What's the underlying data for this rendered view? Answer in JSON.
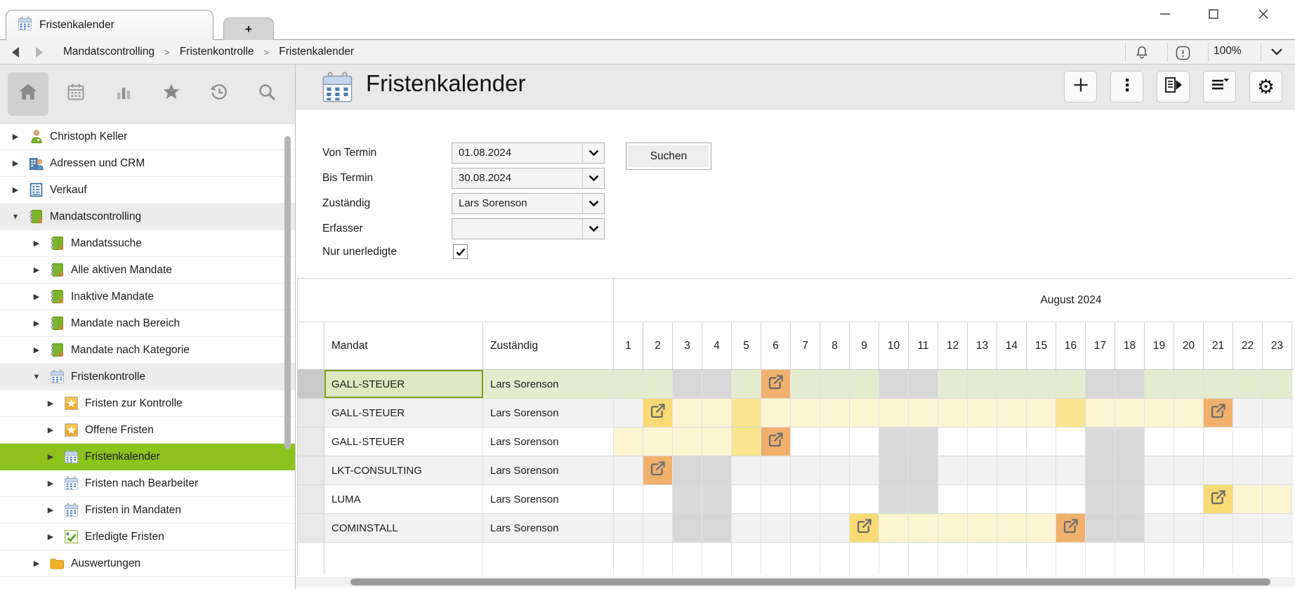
{
  "tab_bar": {
    "active_tab": {
      "label": "Fristenkalender"
    },
    "new_tab_label": "+"
  },
  "breadcrumb": {
    "items": [
      "Mandatscontrolling",
      "Fristenkontrolle",
      "Fristenkalender"
    ],
    "separator": ">",
    "zoom": "100%"
  },
  "sidebar": {
    "icon_strip": [
      {
        "name": "home",
        "selected": true
      },
      {
        "name": "calendar",
        "selected": false
      },
      {
        "name": "bar-chart",
        "selected": false
      },
      {
        "name": "star",
        "selected": false
      },
      {
        "name": "history",
        "selected": false
      },
      {
        "name": "search",
        "selected": false
      }
    ],
    "tree": [
      {
        "label": "Christoph Keller",
        "level": 0,
        "state": "collapsed",
        "icon": "person"
      },
      {
        "label": "Adressen und CRM",
        "level": 0,
        "state": "collapsed",
        "icon": "crm"
      },
      {
        "label": "Verkauf",
        "level": 0,
        "state": "collapsed",
        "icon": "sales"
      },
      {
        "label": "Mandatscontrolling",
        "level": 0,
        "state": "expanded",
        "icon": "mandate",
        "highlighted": true
      },
      {
        "label": "Mandatssuche",
        "level": 1,
        "state": "collapsed",
        "icon": "mandate"
      },
      {
        "label": "Alle aktiven Mandate",
        "level": 1,
        "state": "collapsed",
        "icon": "mandate"
      },
      {
        "label": "Inaktive Mandate",
        "level": 1,
        "state": "collapsed",
        "icon": "mandate"
      },
      {
        "label": "Mandate nach Bereich",
        "level": 1,
        "state": "collapsed",
        "icon": "mandate"
      },
      {
        "label": "Mandate nach Kategorie",
        "level": 1,
        "state": "collapsed",
        "icon": "mandate"
      },
      {
        "label": "Fristenkontrolle",
        "level": 1,
        "state": "expanded",
        "icon": "calendar",
        "highlighted": true
      },
      {
        "label": "Fristen zur Kontrolle",
        "level": 2,
        "state": "collapsed",
        "icon": "star-badge"
      },
      {
        "label": "Offene Fristen",
        "level": 2,
        "state": "collapsed",
        "icon": "star-badge"
      },
      {
        "label": "Fristenkalender",
        "level": 2,
        "state": "collapsed",
        "icon": "calendar",
        "selected": true
      },
      {
        "label": "Fristen nach Bearbeiter",
        "level": 2,
        "state": "collapsed",
        "icon": "calendar"
      },
      {
        "label": "Fristen in Mandaten",
        "level": 2,
        "state": "collapsed",
        "icon": "calendar"
      },
      {
        "label": "Erledigte Fristen",
        "level": 2,
        "state": "collapsed",
        "icon": "done-badge"
      },
      {
        "label": "Auswertungen",
        "level": 1,
        "state": "collapsed",
        "icon": "folder"
      }
    ]
  },
  "main": {
    "title": "Fristenkalender",
    "toolbar": [
      {
        "name": "add",
        "icon": "plus"
      },
      {
        "name": "more",
        "icon": "kebab"
      },
      {
        "name": "report",
        "icon": "report"
      },
      {
        "name": "sort",
        "icon": "sort"
      },
      {
        "name": "settings",
        "icon": "gear"
      }
    ],
    "filter": {
      "fields": [
        {
          "label": "Von Termin",
          "value": "01.08.2024"
        },
        {
          "label": "Bis Termin",
          "value": "30.08.2024"
        },
        {
          "label": "Zuständig",
          "value": "Lars Sorenson"
        },
        {
          "label": "Erfasser",
          "value": ""
        }
      ],
      "checkbox": {
        "label": "Nur unerledigte",
        "checked": true
      },
      "search_button": "Suchen"
    },
    "calendar": {
      "month_label": "August 2024",
      "columns": {
        "mandat": "Mandat",
        "zustaendig": "Zuständig"
      },
      "days_visible": {
        "from": 1,
        "to": 23
      },
      "weekend_days": [
        3,
        4,
        10,
        11,
        17,
        18
      ],
      "rows": [
        {
          "mandat": "GALL-STEUER",
          "zustaendig": "Lars Sorenson",
          "row_style": "selected",
          "marks": [
            {
              "day": 6,
              "type": "deadline-orange"
            }
          ]
        },
        {
          "mandat": "GALL-STEUER",
          "zustaendig": "Lars Sorenson",
          "row_style": "alt",
          "marks": [
            {
              "day": 2,
              "type": "deadline-yellow"
            },
            {
              "from": 3,
              "to": 20,
              "type": "range-pale"
            },
            {
              "day": 5,
              "type": "range-strong"
            },
            {
              "day": 16,
              "type": "range-strong"
            },
            {
              "day": 21,
              "type": "deadline-orange"
            }
          ]
        },
        {
          "mandat": "GALL-STEUER",
          "zustaendig": "Lars Sorenson",
          "row_style": "plain",
          "marks": [
            {
              "from": 1,
              "to": 4,
              "type": "range-pale"
            },
            {
              "day": 5,
              "type": "range-strong"
            },
            {
              "day": 6,
              "type": "deadline-orange"
            }
          ]
        },
        {
          "mandat": "LKT-CONSULTING",
          "zustaendig": "Lars Sorenson",
          "row_style": "alt",
          "marks": [
            {
              "day": 2,
              "type": "deadline-orange"
            }
          ]
        },
        {
          "mandat": "LUMA",
          "zustaendig": "Lars Sorenson",
          "row_style": "plain",
          "marks": [
            {
              "day": 21,
              "type": "deadline-yellow"
            },
            {
              "from": 22,
              "to": 23,
              "type": "range-pale"
            }
          ]
        },
        {
          "mandat": "COMINSTALL",
          "zustaendig": "Lars Sorenson",
          "row_style": "alt",
          "marks": [
            {
              "day": 9,
              "type": "deadline-yellow"
            },
            {
              "from": 10,
              "to": 15,
              "type": "range-pale"
            },
            {
              "day": 16,
              "type": "deadline-orange"
            }
          ]
        }
      ]
    }
  },
  "colors": {
    "accent_green": "#8cc31c",
    "selected_row_bg": "#e4ecd0",
    "selected_cell_border": "#7aa21b",
    "range_pale": "#fcf5d2",
    "range_strong": "#f8e58e",
    "deadline_yellow": "#f8db72",
    "deadline_orange": "#f1b06c",
    "weekend_gray": "#dadada",
    "alt_row_gray": "#f2f2f2"
  }
}
